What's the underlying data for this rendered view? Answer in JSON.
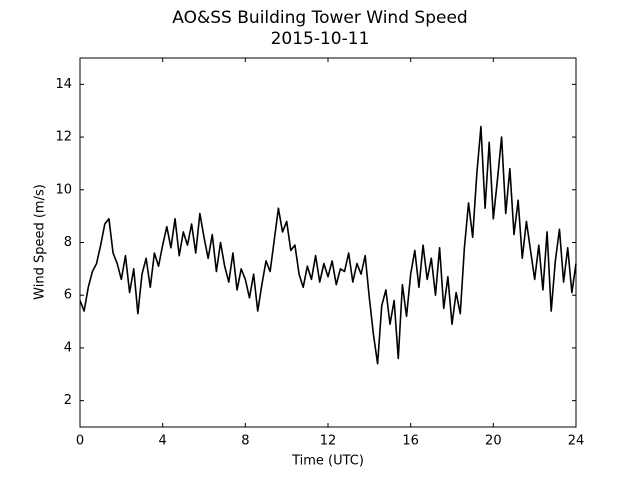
{
  "chart_data": {
    "type": "line",
    "title": "AO&SS Building Tower Wind Speed",
    "subtitle": "2015-10-11",
    "xlabel": "Time (UTC)",
    "ylabel": "Wind Speed (m/s)",
    "xlim": [
      0,
      24
    ],
    "xticks": [
      0,
      4,
      8,
      12,
      16,
      20,
      24
    ],
    "ylim": [
      1,
      15
    ],
    "yticks": [
      2,
      4,
      6,
      8,
      10,
      12,
      14
    ],
    "grid": false,
    "x": [
      0,
      0.2,
      0.4,
      0.6,
      0.8,
      1.0,
      1.2,
      1.4,
      1.6,
      1.8,
      2.0,
      2.2,
      2.4,
      2.6,
      2.8,
      3.0,
      3.2,
      3.4,
      3.6,
      3.8,
      4.0,
      4.2,
      4.4,
      4.6,
      4.8,
      5.0,
      5.2,
      5.4,
      5.6,
      5.8,
      6.0,
      6.2,
      6.4,
      6.6,
      6.8,
      7.0,
      7.2,
      7.4,
      7.6,
      7.8,
      8.0,
      8.2,
      8.4,
      8.6,
      8.8,
      9.0,
      9.2,
      9.4,
      9.6,
      9.8,
      10.0,
      10.2,
      10.4,
      10.6,
      10.8,
      11.0,
      11.2,
      11.4,
      11.6,
      11.8,
      12.0,
      12.2,
      12.4,
      12.6,
      12.8,
      13.0,
      13.2,
      13.4,
      13.6,
      13.8,
      14.0,
      14.2,
      14.4,
      14.6,
      14.8,
      15.0,
      15.2,
      15.4,
      15.6,
      15.8,
      16.0,
      16.2,
      16.4,
      16.6,
      16.8,
      17.0,
      17.2,
      17.4,
      17.6,
      17.8,
      18.0,
      18.2,
      18.4,
      18.6,
      18.8,
      19.0,
      19.2,
      19.4,
      19.6,
      19.8,
      20.0,
      20.2,
      20.4,
      20.6,
      20.8,
      21.0,
      21.2,
      21.4,
      21.6,
      21.8,
      22.0,
      22.2,
      22.4,
      22.6,
      22.8,
      23.0,
      23.2,
      23.4,
      23.6,
      23.8,
      24.0
    ],
    "series": [
      {
        "color": "#000000",
        "values": [
          5.8,
          5.4,
          6.3,
          6.9,
          7.2,
          7.9,
          8.7,
          8.9,
          7.6,
          7.2,
          6.6,
          7.5,
          6.1,
          7.0,
          5.3,
          6.8,
          7.4,
          6.3,
          7.6,
          7.1,
          7.9,
          8.6,
          7.8,
          8.9,
          7.5,
          8.4,
          7.9,
          8.7,
          7.6,
          9.1,
          8.2,
          7.4,
          8.3,
          6.9,
          8.0,
          7.1,
          6.5,
          7.6,
          6.2,
          7.0,
          6.6,
          5.9,
          6.8,
          5.4,
          6.4,
          7.3,
          6.9,
          8.1,
          9.3,
          8.4,
          8.8,
          7.7,
          7.9,
          6.8,
          6.3,
          7.1,
          6.6,
          7.5,
          6.5,
          7.2,
          6.7,
          7.3,
          6.4,
          7.0,
          6.9,
          7.6,
          6.5,
          7.2,
          6.8,
          7.5,
          5.9,
          4.5,
          3.4,
          5.6,
          6.2,
          4.9,
          5.8,
          3.6,
          6.4,
          5.2,
          6.8,
          7.7,
          6.3,
          7.9,
          6.6,
          7.4,
          6.0,
          7.8,
          5.5,
          6.7,
          4.9,
          6.1,
          5.3,
          7.8,
          9.5,
          8.2,
          10.6,
          12.4,
          9.3,
          11.8,
          8.9,
          10.4,
          12.0,
          9.1,
          10.8,
          8.3,
          9.6,
          7.4,
          8.8,
          7.7,
          6.6,
          7.9,
          6.2,
          8.4,
          5.4,
          7.3,
          8.5,
          6.5,
          7.8,
          6.1,
          7.2
        ]
      }
    ]
  }
}
